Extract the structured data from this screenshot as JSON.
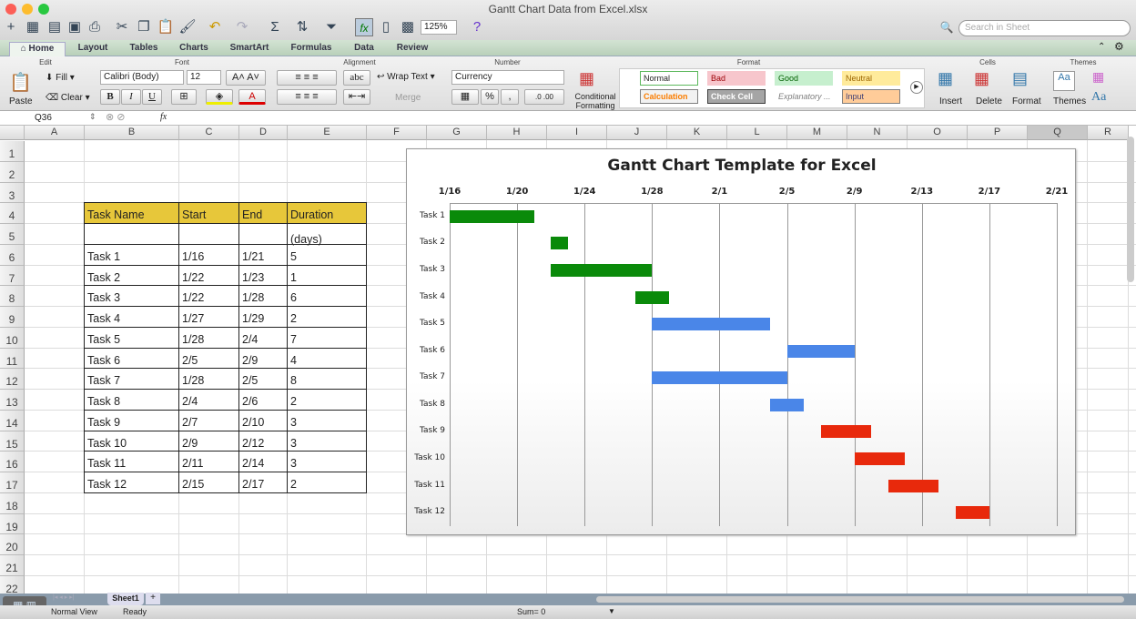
{
  "window": {
    "title": "Gantt Chart Data from Excel.xlsx"
  },
  "toolbar": {
    "zoom": "125%",
    "search_placeholder": "Search in Sheet"
  },
  "tabs": [
    "Home",
    "Layout",
    "Tables",
    "Charts",
    "SmartArt",
    "Formulas",
    "Data",
    "Review"
  ],
  "ribbon": {
    "groups": {
      "edit": "Edit",
      "font": "Font",
      "alignment": "Alignment",
      "number": "Number",
      "format": "Format",
      "cells": "Cells",
      "themes": "Themes"
    },
    "paste": "Paste",
    "fill": "Fill",
    "clear": "Clear",
    "font_name": "Calibri (Body)",
    "font_size": "12",
    "bold": "B",
    "italic": "I",
    "underline": "U",
    "wrap_text": "Wrap Text",
    "merge": "Merge",
    "abc": "abc",
    "number_format": "Currency",
    "percent": "%",
    "comma": ",",
    "conditional": "Conditional Formatting",
    "styles": [
      {
        "label": "Normal",
        "bg": "#ffffff",
        "fg": "#222222",
        "border": "#5cb85c"
      },
      {
        "label": "Bad",
        "bg": "#f7c6cc",
        "fg": "#9c0006",
        "border": "#f7c6cc"
      },
      {
        "label": "Good",
        "bg": "#c6efce",
        "fg": "#006100",
        "border": "#c6efce"
      },
      {
        "label": "Neutral",
        "bg": "#ffeb9c",
        "fg": "#9c6500",
        "border": "#ffeb9c"
      },
      {
        "label": "Calculation",
        "bg": "#f2f2f2",
        "fg": "#fa7d00",
        "border": "#7f7f7f"
      },
      {
        "label": "Check Cell",
        "bg": "#a5a5a5",
        "fg": "#ffffff",
        "border": "#3f3f3f"
      },
      {
        "label": "Explanatory ...",
        "bg": "#ffffff",
        "fg": "#7f7f7f",
        "border": "#ffffff"
      },
      {
        "label": "Input",
        "bg": "#ffcc99",
        "fg": "#3f3f76",
        "border": "#7f7f7f"
      }
    ],
    "insert": "Insert",
    "delete": "Delete",
    "format": "Format",
    "themes": "Themes",
    "aa": "Aa"
  },
  "formula_bar": {
    "cell_ref": "Q36",
    "fx": "fx",
    "value": ""
  },
  "columns": [
    "A",
    "B",
    "C",
    "D",
    "E",
    "F",
    "G",
    "H",
    "I",
    "J",
    "K",
    "L",
    "M",
    "N",
    "O",
    "P",
    "Q",
    "R"
  ],
  "rows": [
    "1",
    "2",
    "3",
    "4",
    "5",
    "6",
    "7",
    "8",
    "9",
    "10",
    "11",
    "12",
    "13",
    "14",
    "15",
    "16",
    "17",
    "18",
    "19",
    "20",
    "21",
    "22"
  ],
  "table": {
    "headers": [
      "Task Name",
      "Start",
      "End",
      "Duration (days)"
    ],
    "rows": [
      [
        "",
        "",
        "",
        ""
      ],
      [
        "Task 1",
        "1/16",
        "1/21",
        "5"
      ],
      [
        "Task 2",
        "1/22",
        "1/23",
        "1"
      ],
      [
        "Task 3",
        "1/22",
        "1/28",
        "6"
      ],
      [
        "Task 4",
        "1/27",
        "1/29",
        "2"
      ],
      [
        "Task 5",
        "1/28",
        "2/4",
        "7"
      ],
      [
        "Task 6",
        "2/5",
        "2/9",
        "4"
      ],
      [
        "Task 7",
        "1/28",
        "2/5",
        "8"
      ],
      [
        "Task 8",
        "2/4",
        "2/6",
        "2"
      ],
      [
        "Task 9",
        "2/7",
        "2/10",
        "3"
      ],
      [
        "Task 10",
        "2/9",
        "2/12",
        "3"
      ],
      [
        "Task 11",
        "2/11",
        "2/14",
        "3"
      ],
      [
        "Task 12",
        "2/15",
        "2/17",
        "2"
      ]
    ]
  },
  "chart_data": {
    "type": "bar",
    "orientation": "horizontal-gantt",
    "title": "Gantt Chart Template for Excel",
    "categories": [
      "Task 1",
      "Task 2",
      "Task 3",
      "Task 4",
      "Task 5",
      "Task 6",
      "Task 7",
      "Task 8",
      "Task 9",
      "Task 10",
      "Task 11",
      "Task 12"
    ],
    "start": [
      "1/16",
      "1/22",
      "1/22",
      "1/27",
      "1/28",
      "2/5",
      "1/28",
      "2/4",
      "2/7",
      "2/9",
      "2/11",
      "2/15"
    ],
    "duration": [
      5,
      1,
      6,
      2,
      7,
      4,
      8,
      2,
      3,
      3,
      3,
      2
    ],
    "colors": [
      "#0a8a0a",
      "#0a8a0a",
      "#0a8a0a",
      "#0a8a0a",
      "#4a86e8",
      "#4a86e8",
      "#4a86e8",
      "#4a86e8",
      "#e8290c",
      "#e8290c",
      "#e8290c",
      "#e8290c"
    ],
    "xticks": [
      "1/16",
      "1/20",
      "1/24",
      "1/28",
      "2/1",
      "2/5",
      "2/9",
      "2/13",
      "2/17",
      "2/21"
    ],
    "xlim": [
      "1/16",
      "2/21"
    ],
    "x_axis_position": "top",
    "grid": true
  },
  "sheet_tabs": [
    "Sheet1"
  ],
  "status": {
    "view": "Normal View",
    "state": "Ready",
    "sum": "Sum= 0"
  }
}
